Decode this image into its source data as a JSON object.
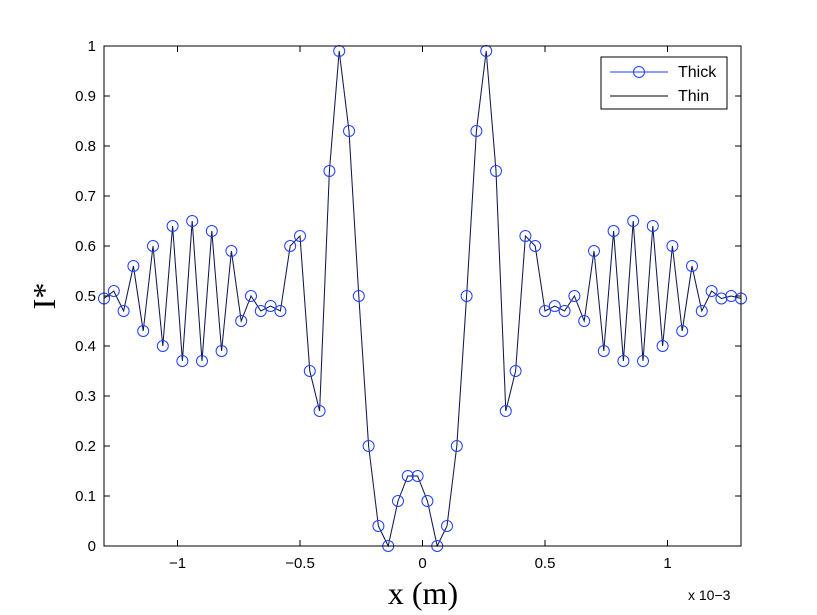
{
  "chart_data": {
    "type": "line",
    "xlabel": "x (m)",
    "ylabel": "I*",
    "xlim": [
      -1.3,
      1.3
    ],
    "ylim": [
      0,
      1
    ],
    "x_scale_label": "x 10−3",
    "x_ticks": [
      -1,
      -0.5,
      0,
      0.5,
      1
    ],
    "x_tick_labels": [
      "−1",
      "−0.5",
      "0",
      "0.5",
      "1"
    ],
    "y_ticks": [
      0,
      0.1,
      0.2,
      0.3,
      0.4,
      0.5,
      0.6,
      0.7,
      0.8,
      0.9,
      1
    ],
    "y_tick_labels": [
      "0",
      "0.1",
      "0.2",
      "0.3",
      "0.4",
      "0.5",
      "0.6",
      "0.7",
      "0.8",
      "0.9",
      "1"
    ],
    "grid": false,
    "legend_position": "top-right",
    "series": [
      {
        "name": "Thick",
        "color": "#1f3fff",
        "marker": "circle",
        "x": [
          -1.3,
          -1.26,
          -1.22,
          -1.18,
          -1.14,
          -1.1,
          -1.06,
          -1.02,
          -0.98,
          -0.94,
          -0.9,
          -0.86,
          -0.82,
          -0.78,
          -0.74,
          -0.7,
          -0.66,
          -0.62,
          -0.58,
          -0.54,
          -0.5,
          -0.46,
          -0.42,
          -0.38,
          -0.34,
          -0.3,
          -0.26,
          -0.22,
          -0.18,
          -0.14,
          -0.1,
          -0.06,
          -0.02,
          0.02,
          0.06,
          0.1,
          0.14,
          0.18,
          0.22,
          0.26,
          0.3,
          0.34,
          0.38,
          0.42,
          0.46,
          0.5,
          0.54,
          0.58,
          0.62,
          0.66,
          0.7,
          0.74,
          0.78,
          0.82,
          0.86,
          0.9,
          0.94,
          0.98,
          1.02,
          1.06,
          1.1,
          1.14,
          1.18,
          1.22,
          1.26,
          1.3
        ],
        "y": [
          0.495,
          0.51,
          0.47,
          0.56,
          0.43,
          0.6,
          0.4,
          0.64,
          0.37,
          0.65,
          0.37,
          0.63,
          0.39,
          0.59,
          0.45,
          0.5,
          0.47,
          0.48,
          0.47,
          0.6,
          0.62,
          0.35,
          0.27,
          0.75,
          0.99,
          0.83,
          0.5,
          0.2,
          0.04,
          0.0,
          0.09,
          0.14,
          0.14,
          0.09,
          0.0,
          0.04,
          0.2,
          0.5,
          0.83,
          0.99,
          0.75,
          0.27,
          0.35,
          0.62,
          0.6,
          0.47,
          0.48,
          0.47,
          0.5,
          0.45,
          0.59,
          0.39,
          0.63,
          0.37,
          0.65,
          0.37,
          0.64,
          0.4,
          0.6,
          0.43,
          0.56,
          0.47,
          0.51,
          0.495,
          0.5,
          0.495
        ]
      },
      {
        "name": "Thin",
        "color": "#000000",
        "marker": "none",
        "x": [
          -1.3,
          -1.26,
          -1.22,
          -1.18,
          -1.14,
          -1.1,
          -1.06,
          -1.02,
          -0.98,
          -0.94,
          -0.9,
          -0.86,
          -0.82,
          -0.78,
          -0.74,
          -0.7,
          -0.66,
          -0.62,
          -0.58,
          -0.54,
          -0.5,
          -0.46,
          -0.42,
          -0.38,
          -0.34,
          -0.3,
          -0.26,
          -0.22,
          -0.18,
          -0.14,
          -0.1,
          -0.06,
          -0.02,
          0.02,
          0.06,
          0.1,
          0.14,
          0.18,
          0.22,
          0.26,
          0.3,
          0.34,
          0.38,
          0.42,
          0.46,
          0.5,
          0.54,
          0.58,
          0.62,
          0.66,
          0.7,
          0.74,
          0.78,
          0.82,
          0.86,
          0.9,
          0.94,
          0.98,
          1.02,
          1.06,
          1.1,
          1.14,
          1.18,
          1.22,
          1.26,
          1.3
        ],
        "y": [
          0.495,
          0.51,
          0.47,
          0.56,
          0.43,
          0.6,
          0.4,
          0.64,
          0.37,
          0.65,
          0.37,
          0.63,
          0.39,
          0.59,
          0.45,
          0.5,
          0.47,
          0.48,
          0.47,
          0.6,
          0.62,
          0.35,
          0.27,
          0.75,
          0.99,
          0.83,
          0.5,
          0.2,
          0.04,
          0.0,
          0.09,
          0.14,
          0.14,
          0.09,
          0.0,
          0.04,
          0.2,
          0.5,
          0.83,
          0.99,
          0.75,
          0.27,
          0.35,
          0.62,
          0.6,
          0.47,
          0.48,
          0.47,
          0.5,
          0.45,
          0.59,
          0.39,
          0.63,
          0.37,
          0.65,
          0.37,
          0.64,
          0.4,
          0.6,
          0.43,
          0.56,
          0.47,
          0.51,
          0.495,
          0.5,
          0.495
        ]
      }
    ]
  }
}
